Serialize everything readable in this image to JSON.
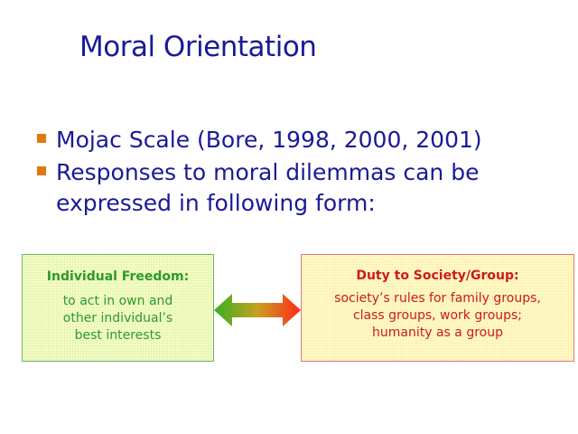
{
  "slide": {
    "title": "Moral Orientation",
    "bullets": [
      {
        "text": "Mojac Scale (Bore, 1998, 2000, 2001)"
      },
      {
        "text": "Responses to moral dilemmas can be expressed in following form:"
      }
    ]
  },
  "left_box": {
    "heading": "Individual Freedom:",
    "lines": [
      "to act in own and",
      "other individual’s",
      "best interests"
    ]
  },
  "right_box": {
    "heading": "Duty to Society/Group:",
    "lines": [
      "society’s rules for family groups,",
      "class groups, work groups;",
      "humanity as a group"
    ]
  },
  "colors": {
    "title": "#1a1a96",
    "bullet_marker": "#e07a10",
    "left_text": "#2d9a2d",
    "right_text": "#cc1b1b",
    "arrow_start": "#35b025",
    "arrow_end": "#ff2a1a"
  },
  "icons": {
    "arrow": "double-headed-arrow-icon",
    "bullet": "square-bullet-icon"
  }
}
